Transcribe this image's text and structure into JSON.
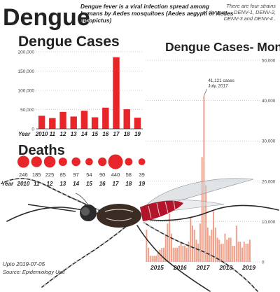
{
  "header": {
    "title": "Dengue",
    "description": "Dengue fever is a viral infection spread among humans by Aedes mosquitoes (Aedes aegypti or Aedes albopictus)",
    "strains_note": "There are four strains of dengue — DENV-1, DENV-2, DENV-3 and DENV-4 ."
  },
  "footer": {
    "date_note": "Upto 2019-07-05",
    "source": "Source: Epidemiology Unit"
  },
  "colors": {
    "bar_red": "#e8262a",
    "monthly_bar": "#f0a089",
    "grid": "#9a9a9a"
  },
  "illustration": "mosquito",
  "chart_data": [
    {
      "type": "bar",
      "title": "Dengue Cases",
      "xlabel": "Year",
      "categories": [
        "2010",
        "11",
        "12",
        "13",
        "14",
        "15",
        "16",
        "17",
        "18",
        "19"
      ],
      "values": [
        34000,
        28000,
        44000,
        32000,
        47000,
        30000,
        55000,
        186000,
        51000,
        29000
      ],
      "yticks": [
        "200,000",
        "150,000",
        "100,000",
        "50,000",
        "0"
      ],
      "ylim": [
        0,
        200000
      ],
      "grid": true
    },
    {
      "type": "scatter",
      "title": "Deaths",
      "xlabel": "Year",
      "categories": [
        "2010",
        "11",
        "12",
        "13",
        "14",
        "15",
        "16",
        "17",
        "18",
        "19"
      ],
      "values": [
        246,
        185,
        225,
        85,
        97,
        54,
        90,
        440,
        58,
        39
      ],
      "value_labels": [
        "246",
        "185",
        "225",
        "85",
        "97",
        "54",
        "90",
        "440",
        "58",
        "39"
      ]
    },
    {
      "type": "bar",
      "title": "Dengue Cases- Monthly",
      "xticks": [
        "2015",
        "2016",
        "2017",
        "2018",
        "2019"
      ],
      "yticks": [
        "50,000",
        "40,000",
        "30,000",
        "20,000",
        "10,000",
        "0"
      ],
      "ylim": [
        0,
        50000
      ],
      "grid": true,
      "annotation": {
        "text": [
          "41,121 cases",
          "July, 2017"
        ],
        "value": 41121
      },
      "x_start": "2015-01",
      "values": [
        8000,
        3500,
        1500,
        1500,
        1500,
        1500,
        2500,
        3000,
        3500,
        3500,
        6500,
        9500,
        12000,
        7000,
        3500,
        3500,
        3500,
        4000,
        5000,
        4000,
        4000,
        3500,
        5000,
        11000,
        9000,
        8000,
        5500,
        4500,
        9500,
        26000,
        41121,
        19000,
        8500,
        6500,
        8000,
        12500,
        8500,
        6000,
        5500,
        4500,
        4500,
        7000,
        5500,
        6000,
        6000,
        4000,
        4000,
        9000,
        5000,
        5000,
        3500,
        5000,
        4500,
        4500,
        5500
      ]
    }
  ]
}
